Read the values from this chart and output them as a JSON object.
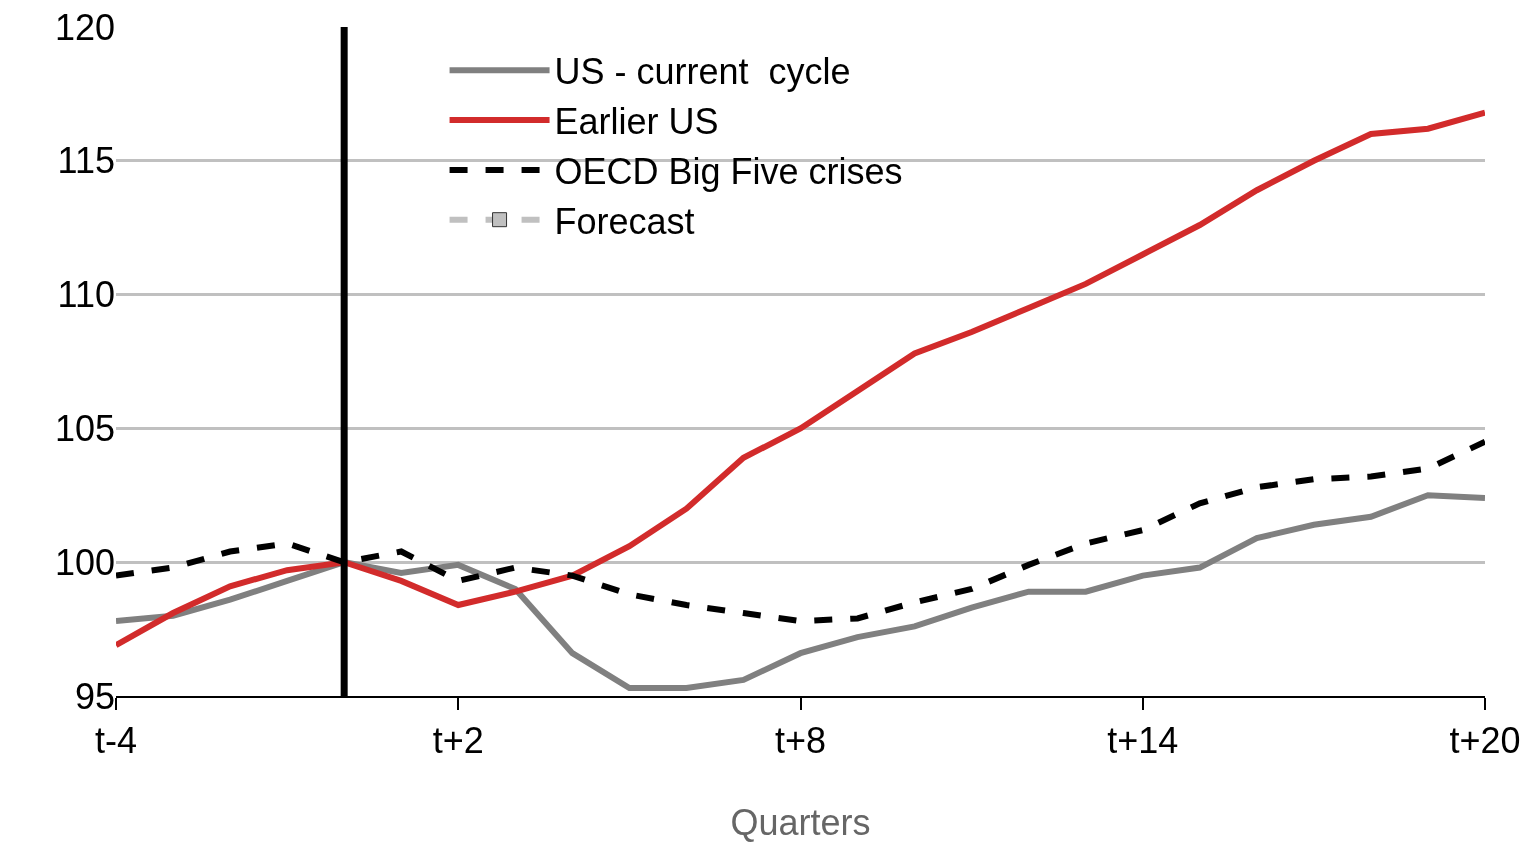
{
  "chart_data": {
    "type": "line",
    "xlabel": "Quarters",
    "categories": [
      "t-4",
      null,
      null,
      null,
      null,
      null,
      "t+2",
      null,
      null,
      null,
      null,
      null,
      "t+8",
      null,
      null,
      null,
      null,
      null,
      "t+14",
      null,
      null,
      null,
      null,
      null,
      "t+20"
    ],
    "ylim": [
      95,
      120
    ],
    "yticks": [
      95,
      100,
      105,
      110,
      115,
      120
    ],
    "grid": "y",
    "legend": "top left",
    "series": [
      {
        "name": "US - current  cycle",
        "color": "#808080",
        "values": [
          97.8,
          98.0,
          98.6,
          99.3,
          100,
          99.6,
          99.9,
          99.0,
          96.6,
          95.3,
          95.3,
          95.6,
          96.6,
          97.2,
          97.6,
          98.3,
          98.9,
          98.9,
          99.5,
          99.8,
          100.9,
          101.4,
          101.7,
          102.5,
          102.4
        ]
      },
      {
        "name": "Earlier US",
        "color": "#d22b2b",
        "values": [
          96.9,
          98.1,
          99.1,
          99.7,
          100,
          99.3,
          98.4,
          98.9,
          99.5,
          100.6,
          102.0,
          103.9,
          105.0,
          106.4,
          107.8,
          108.6,
          109.5,
          110.4,
          111.5,
          112.6,
          113.9,
          115.0,
          116.0,
          116.2,
          116.8
        ]
      },
      {
        "name": "OECD Big Five crises",
        "color": "#000000",
        "line_style": "dashed",
        "values": [
          99.5,
          99.8,
          100.4,
          100.7,
          100,
          100.4,
          99.3,
          99.8,
          99.5,
          98.8,
          98.4,
          98.1,
          97.8,
          97.9,
          98.5,
          99.0,
          99.9,
          100.7,
          101.2,
          102.2,
          102.8,
          103.1,
          103.2,
          103.5,
          104.5
        ]
      },
      {
        "name": "Forecast",
        "color": "#c0c0c0",
        "line_style": "dashed",
        "marker": "square",
        "values": [
          null,
          null,
          null,
          null,
          null,
          null,
          null,
          null,
          null,
          null,
          null,
          null,
          null,
          null,
          null,
          null,
          null,
          null,
          null,
          null,
          null,
          null,
          null,
          null,
          null
        ]
      }
    ]
  }
}
